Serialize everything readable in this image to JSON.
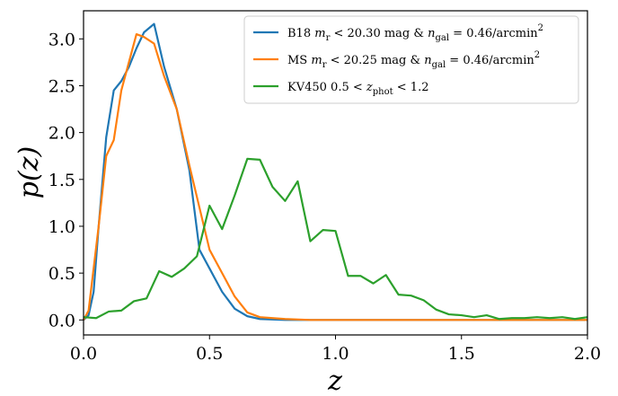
{
  "chart_data": {
    "type": "line",
    "xlabel": "z",
    "ylabel": "p(z)",
    "xlim": [
      0.0,
      2.0
    ],
    "ylim": [
      -0.16,
      3.3
    ],
    "x_ticks": [
      0.0,
      0.5,
      1.0,
      1.5,
      2.0
    ],
    "x_tick_labels": [
      "0.0",
      "0.5",
      "1.0",
      "1.5",
      "2.0"
    ],
    "y_ticks": [
      0.0,
      0.5,
      1.0,
      1.5,
      2.0,
      2.5,
      3.0
    ],
    "y_tick_labels": [
      "0.0",
      "0.5",
      "1.0",
      "1.5",
      "2.0",
      "2.5",
      "3.0"
    ],
    "legend_position": "top-right",
    "grid": false,
    "series": [
      {
        "name": "B18 m_r < 20.30 mag & n_gal = 0.46/arcmin²",
        "color": "#1f77b4",
        "points": [
          [
            0.0,
            0.0
          ],
          [
            0.02,
            0.05
          ],
          [
            0.04,
            0.3
          ],
          [
            0.06,
            1.0
          ],
          [
            0.09,
            1.95
          ],
          [
            0.12,
            2.45
          ],
          [
            0.15,
            2.55
          ],
          [
            0.18,
            2.7
          ],
          [
            0.21,
            2.9
          ],
          [
            0.24,
            3.07
          ],
          [
            0.28,
            3.16
          ],
          [
            0.32,
            2.7
          ],
          [
            0.37,
            2.25
          ],
          [
            0.42,
            1.6
          ],
          [
            0.46,
            0.75
          ],
          [
            0.5,
            0.55
          ],
          [
            0.55,
            0.3
          ],
          [
            0.6,
            0.12
          ],
          [
            0.65,
            0.04
          ],
          [
            0.7,
            0.01
          ],
          [
            0.8,
            0.0
          ],
          [
            1.0,
            0.0
          ],
          [
            1.5,
            0.0
          ],
          [
            2.0,
            0.0
          ]
        ]
      },
      {
        "name": "MS m_r < 20.25 mag & n_gal = 0.46/arcmin²",
        "color": "#ff7f0e",
        "points": [
          [
            0.0,
            0.0
          ],
          [
            0.02,
            0.1
          ],
          [
            0.04,
            0.55
          ],
          [
            0.06,
            1.0
          ],
          [
            0.09,
            1.75
          ],
          [
            0.12,
            1.92
          ],
          [
            0.15,
            2.45
          ],
          [
            0.21,
            3.05
          ],
          [
            0.24,
            3.02
          ],
          [
            0.28,
            2.95
          ],
          [
            0.32,
            2.6
          ],
          [
            0.37,
            2.25
          ],
          [
            0.42,
            1.65
          ],
          [
            0.46,
            1.2
          ],
          [
            0.5,
            0.75
          ],
          [
            0.55,
            0.5
          ],
          [
            0.6,
            0.25
          ],
          [
            0.65,
            0.08
          ],
          [
            0.7,
            0.03
          ],
          [
            0.8,
            0.01
          ],
          [
            0.9,
            0.0
          ],
          [
            1.0,
            0.0
          ],
          [
            1.5,
            0.0
          ],
          [
            2.0,
            0.0
          ]
        ]
      },
      {
        "name": "KV450 0.5 < z_phot < 1.2",
        "color": "#2ca02c",
        "points": [
          [
            0.0,
            0.03
          ],
          [
            0.05,
            0.02
          ],
          [
            0.1,
            0.09
          ],
          [
            0.15,
            0.1
          ],
          [
            0.2,
            0.2
          ],
          [
            0.25,
            0.23
          ],
          [
            0.3,
            0.52
          ],
          [
            0.35,
            0.46
          ],
          [
            0.4,
            0.55
          ],
          [
            0.45,
            0.68
          ],
          [
            0.5,
            1.22
          ],
          [
            0.55,
            0.97
          ],
          [
            0.6,
            1.33
          ],
          [
            0.65,
            1.72
          ],
          [
            0.7,
            1.71
          ],
          [
            0.75,
            1.42
          ],
          [
            0.8,
            1.27
          ],
          [
            0.85,
            1.48
          ],
          [
            0.9,
            0.84
          ],
          [
            0.95,
            0.96
          ],
          [
            1.0,
            0.95
          ],
          [
            1.05,
            0.47
          ],
          [
            1.1,
            0.47
          ],
          [
            1.15,
            0.39
          ],
          [
            1.2,
            0.48
          ],
          [
            1.25,
            0.27
          ],
          [
            1.3,
            0.26
          ],
          [
            1.35,
            0.21
          ],
          [
            1.4,
            0.11
          ],
          [
            1.45,
            0.06
          ],
          [
            1.5,
            0.05
          ],
          [
            1.55,
            0.03
          ],
          [
            1.6,
            0.05
          ],
          [
            1.65,
            0.01
          ],
          [
            1.7,
            0.02
          ],
          [
            1.75,
            0.02
          ],
          [
            1.8,
            0.03
          ],
          [
            1.85,
            0.02
          ],
          [
            1.9,
            0.03
          ],
          [
            1.95,
            0.01
          ],
          [
            2.0,
            0.03
          ]
        ]
      }
    ]
  }
}
